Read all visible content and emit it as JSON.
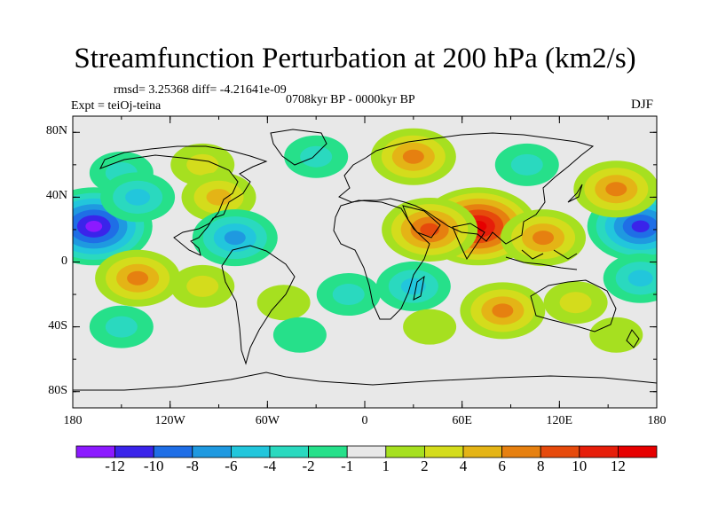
{
  "header": {
    "title": "Streamfunction Perturbation at 200 hPa (km2/s)",
    "stats": "rmsd= 3.25368 diff= -4.21641e-09",
    "period": "0708kyr BP - 0000kyr BP",
    "experiment": "Expt = teiOj-teina",
    "season": "DJF"
  },
  "axes": {
    "lat_labels": [
      "80N",
      "40N",
      "0",
      "40S",
      "80S"
    ],
    "lat_values": [
      80,
      40,
      0,
      -40,
      -80
    ],
    "lon_labels": [
      "180",
      "120W",
      "60W",
      "0",
      "60E",
      "120E",
      "180"
    ],
    "lon_values": [
      -180,
      -120,
      -60,
      0,
      60,
      120,
      180
    ],
    "lat_range": [
      -90,
      90
    ],
    "lon_range": [
      -180,
      180
    ]
  },
  "colorbar": {
    "labels": [
      "-12",
      "-10",
      "-8",
      "-6",
      "-4",
      "-2",
      "-1",
      "1",
      "2",
      "4",
      "6",
      "8",
      "10",
      "12"
    ],
    "colors": [
      "#8c1aff",
      "#3a24ea",
      "#1f6ee6",
      "#1f99e0",
      "#22c6dc",
      "#2ad9bf",
      "#26e08a",
      "#e8e8e8",
      "#a6e020",
      "#d4dc1c",
      "#e4b416",
      "#e68010",
      "#e64a0c",
      "#e61e0a",
      "#e60000"
    ]
  },
  "map_data": {
    "field": "streamfunction perturbation",
    "units": "km2/s",
    "anomalies": [
      {
        "lon": -167,
        "lat": 22,
        "value": -12
      },
      {
        "lon": -150,
        "lat": 55,
        "value": -2
      },
      {
        "lon": -140,
        "lat": 40,
        "value": -4
      },
      {
        "lon": -100,
        "lat": 60,
        "value": 2
      },
      {
        "lon": -90,
        "lat": 40,
        "value": 4
      },
      {
        "lon": -80,
        "lat": 15,
        "value": -6
      },
      {
        "lon": -30,
        "lat": 65,
        "value": -2
      },
      {
        "lon": -140,
        "lat": -10,
        "value": 6
      },
      {
        "lon": -100,
        "lat": -15,
        "value": 2
      },
      {
        "lon": -50,
        "lat": -25,
        "value": 1
      },
      {
        "lon": 30,
        "lat": 65,
        "value": 6
      },
      {
        "lon": 100,
        "lat": 60,
        "value": -2
      },
      {
        "lon": 70,
        "lat": 22,
        "value": 12
      },
      {
        "lon": 40,
        "lat": 20,
        "value": 8
      },
      {
        "lon": 110,
        "lat": 15,
        "value": 6
      },
      {
        "lon": 170,
        "lat": 22,
        "value": -10
      },
      {
        "lon": 155,
        "lat": 45,
        "value": 6
      },
      {
        "lon": -10,
        "lat": -20,
        "value": -2
      },
      {
        "lon": 30,
        "lat": -15,
        "value": -4
      },
      {
        "lon": 85,
        "lat": -30,
        "value": 6
      },
      {
        "lon": 130,
        "lat": -25,
        "value": 2
      },
      {
        "lon": 170,
        "lat": -10,
        "value": -4
      },
      {
        "lon": 155,
        "lat": -45,
        "value": 1
      },
      {
        "lon": -150,
        "lat": -40,
        "value": -2
      },
      {
        "lon": -40,
        "lat": -45,
        "value": -1
      },
      {
        "lon": 40,
        "lat": -40,
        "value": 1
      }
    ]
  }
}
